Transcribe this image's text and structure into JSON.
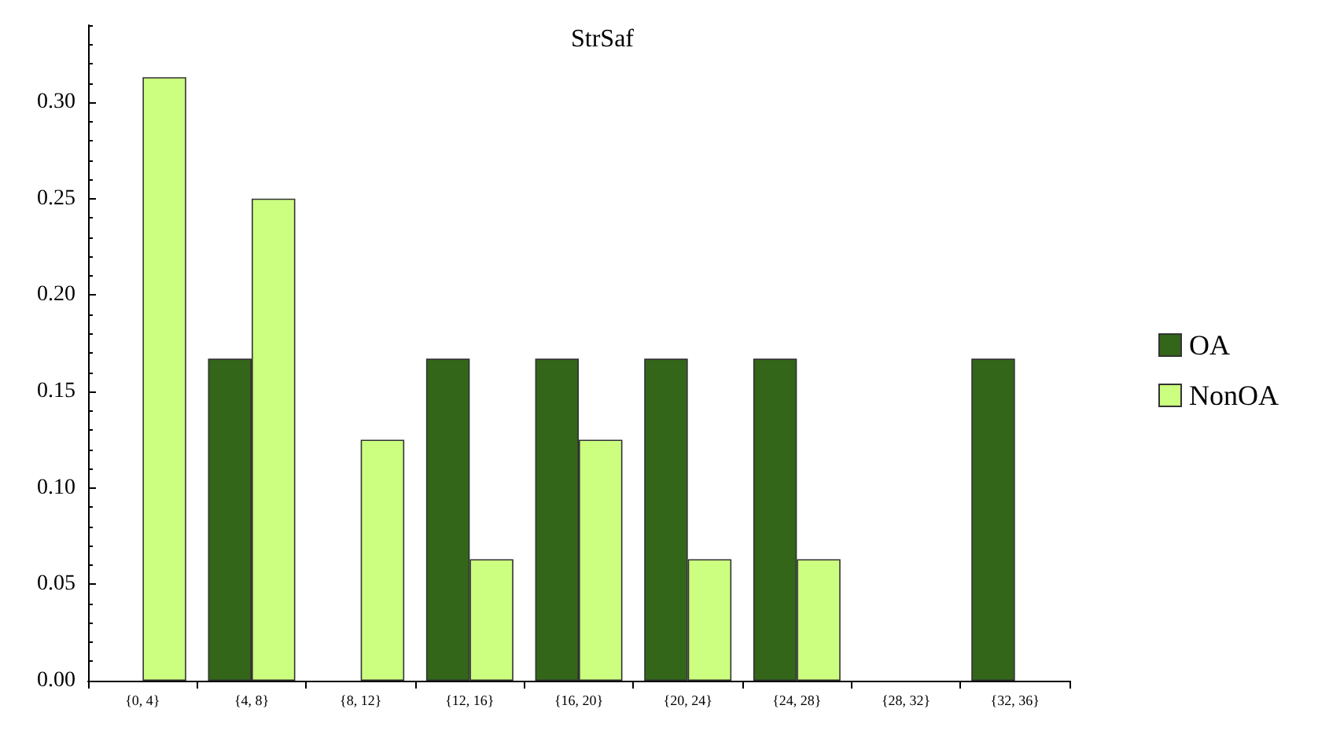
{
  "chart_data": {
    "type": "bar",
    "title": "StrSaf",
    "categories": [
      "{0, 4}",
      "{4, 8}",
      "{8, 12}",
      "{12, 16}",
      "{16, 20}",
      "{20, 24}",
      "{24, 28}",
      "{28, 32}",
      "{32, 36}"
    ],
    "series": [
      {
        "name": "OA",
        "color": "#336619",
        "values": [
          0,
          0.167,
          0,
          0.167,
          0.167,
          0.167,
          0.167,
          0,
          0.167
        ]
      },
      {
        "name": "NonOA",
        "color": "#ccff80",
        "values": [
          0.313,
          0.25,
          0.125,
          0.063,
          0.125,
          0.063,
          0.063,
          0,
          0
        ]
      }
    ],
    "ylim": [
      0,
      0.34
    ],
    "yticks": [
      {
        "value": 0,
        "label": "0.00"
      },
      {
        "value": 0.05,
        "label": "0.05"
      },
      {
        "value": 0.1,
        "label": "0.10"
      },
      {
        "value": 0.15,
        "label": "0.15"
      },
      {
        "value": 0.2,
        "label": "0.20"
      },
      {
        "value": 0.25,
        "label": "0.25"
      },
      {
        "value": 0.3,
        "label": "0.30"
      }
    ],
    "grid": false,
    "legend": "right"
  }
}
